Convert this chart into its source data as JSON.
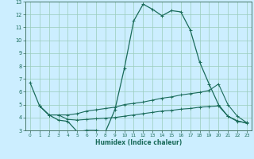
{
  "xlabel": "Humidex (Indice chaleur)",
  "bg_color": "#cceeff",
  "plot_bg": "#cceeff",
  "grid_color": "#99ccbb",
  "line_color": "#1a6b5a",
  "border_color": "#336655",
  "xlim": [
    -0.5,
    23.5
  ],
  "ylim": [
    3,
    13
  ],
  "yticks": [
    3,
    4,
    5,
    6,
    7,
    8,
    9,
    10,
    11,
    12,
    13
  ],
  "xticks": [
    0,
    1,
    2,
    3,
    4,
    5,
    6,
    7,
    8,
    9,
    10,
    11,
    12,
    13,
    14,
    15,
    16,
    17,
    18,
    19,
    20,
    21,
    22,
    23
  ],
  "line1_x": [
    0,
    1,
    2,
    3,
    4,
    5,
    6,
    7,
    8,
    9,
    10,
    11,
    12,
    13,
    14,
    15,
    16,
    17,
    18,
    19,
    20,
    21,
    22,
    23
  ],
  "line1_y": [
    6.7,
    4.9,
    4.2,
    3.8,
    3.7,
    2.9,
    3.0,
    3.0,
    2.9,
    4.6,
    7.8,
    11.5,
    12.8,
    12.4,
    11.9,
    12.3,
    12.2,
    10.8,
    8.3,
    6.6,
    5.0,
    4.1,
    3.7,
    3.6
  ],
  "line2_x": [
    1,
    2,
    3,
    4,
    5,
    6,
    7,
    8,
    9,
    10,
    11,
    12,
    13,
    14,
    15,
    16,
    17,
    18,
    19,
    20,
    21,
    22,
    23
  ],
  "line2_y": [
    4.9,
    4.2,
    4.2,
    4.2,
    4.3,
    4.5,
    4.6,
    4.7,
    4.8,
    5.0,
    5.1,
    5.2,
    5.35,
    5.5,
    5.6,
    5.75,
    5.85,
    5.95,
    6.1,
    6.6,
    5.0,
    4.1,
    3.6
  ],
  "line3_x": [
    1,
    2,
    3,
    4,
    5,
    6,
    7,
    8,
    9,
    10,
    11,
    12,
    13,
    14,
    15,
    16,
    17,
    18,
    19,
    20,
    21,
    22,
    23
  ],
  "line3_y": [
    4.9,
    4.2,
    4.2,
    3.85,
    3.8,
    3.85,
    3.9,
    3.95,
    4.0,
    4.1,
    4.2,
    4.3,
    4.4,
    4.5,
    4.55,
    4.65,
    4.7,
    4.8,
    4.85,
    4.9,
    4.1,
    3.75,
    3.55
  ]
}
